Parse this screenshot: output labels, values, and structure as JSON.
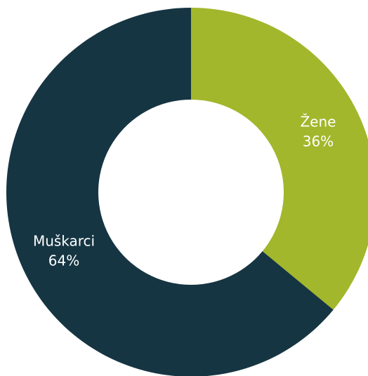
{
  "chart_data": {
    "type": "donut",
    "categories": [
      "Žene",
      "Muškarci"
    ],
    "values": [
      36,
      64
    ],
    "value_labels": [
      "36%",
      "64%"
    ],
    "colors": [
      "#a2b72b",
      "#163542"
    ]
  }
}
